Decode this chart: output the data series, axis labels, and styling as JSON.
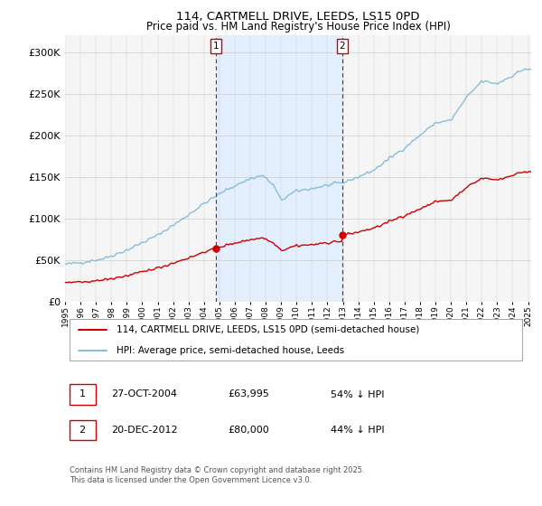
{
  "title": "114, CARTMELL DRIVE, LEEDS, LS15 0PD",
  "subtitle": "Price paid vs. HM Land Registry's House Price Index (HPI)",
  "ylim": [
    0,
    320000
  ],
  "yticks": [
    0,
    50000,
    100000,
    150000,
    200000,
    250000,
    300000
  ],
  "ytick_labels": [
    "£0",
    "£50K",
    "£100K",
    "£150K",
    "£200K",
    "£250K",
    "£300K"
  ],
  "sale1_x": 2004.79,
  "sale1_price": 63995,
  "sale2_x": 2012.96,
  "sale2_price": 80000,
  "hpi_color": "#89bdd8",
  "price_color": "#cc0000",
  "shading_color": "#ddeeff",
  "legend_line1": "114, CARTMELL DRIVE, LEEDS, LS15 0PD (semi-detached house)",
  "legend_line2": "HPI: Average price, semi-detached house, Leeds",
  "footer_text": "Contains HM Land Registry data © Crown copyright and database right 2025.\nThis data is licensed under the Open Government Licence v3.0.",
  "table_row1": [
    "1",
    "27-OCT-2004",
    "£63,995",
    "54% ↓ HPI"
  ],
  "table_row2": [
    "2",
    "20-DEC-2012",
    "£80,000",
    "44% ↓ HPI"
  ],
  "background_color": "#ffffff",
  "plot_background_color": "#f5f5f5"
}
